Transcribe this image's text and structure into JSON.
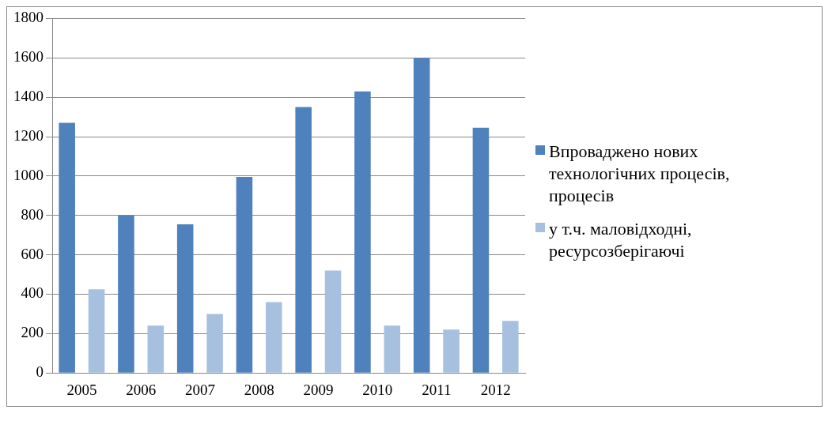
{
  "chart_data": {
    "type": "bar",
    "categories": [
      "2005",
      "2006",
      "2007",
      "2008",
      "2009",
      "2010",
      "2011",
      "2012"
    ],
    "series": [
      {
        "name": "Впроваджено нових технологічних процесів, процесів",
        "color": "#4f81bd",
        "values": [
          1270,
          800,
          755,
          995,
          1350,
          1430,
          1600,
          1245
        ]
      },
      {
        "name": "у т.ч. маловідходні, ресурсозберігаючі",
        "color": "#a7c0e0",
        "values": [
          425,
          240,
          300,
          360,
          520,
          240,
          220,
          265
        ]
      }
    ],
    "ylim": [
      0,
      1800
    ],
    "yticks": [
      0,
      200,
      400,
      600,
      800,
      1000,
      1200,
      1400,
      1600,
      1800
    ],
    "grid": "y",
    "legend": "right"
  }
}
